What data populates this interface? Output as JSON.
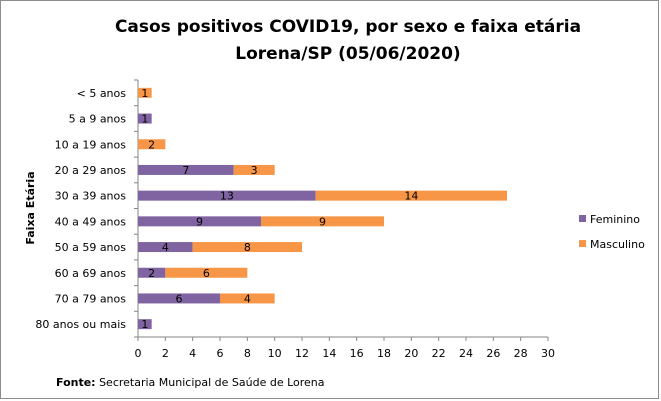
{
  "chart_data": {
    "type": "bar",
    "orientation": "horizontal",
    "stacked": true,
    "title": [
      "Casos positivos  COVID19, por sexo e faixa etária",
      "Lorena/SP (05/06/2020)"
    ],
    "ylabel": "Faixa Etária",
    "xlabel": "",
    "xlim": [
      0,
      30
    ],
    "xticks": [
      0,
      2,
      4,
      6,
      8,
      10,
      12,
      14,
      16,
      18,
      20,
      22,
      24,
      26,
      28,
      30
    ],
    "categories": [
      "< 5 anos",
      "5 a 9 anos",
      "10 a 19 anos",
      "20 a 29 anos",
      "30 a 39 anos",
      "40 a 49 anos",
      "50 a 59 anos",
      "60 a 69 anos",
      "70 a 79 anos",
      "80 anos ou mais"
    ],
    "series": [
      {
        "name": "Feminino",
        "color": "#8064A2",
        "values": [
          0,
          1,
          0,
          7,
          13,
          9,
          4,
          2,
          6,
          1
        ]
      },
      {
        "name": "Masculino",
        "color": "#F79646",
        "values": [
          1,
          0,
          2,
          3,
          14,
          9,
          8,
          6,
          4,
          0
        ]
      }
    ],
    "legend_position": "right",
    "grid": false
  },
  "source": {
    "label": "Fonte:",
    "text": "Secretaria Municipal de Saúde de Lorena"
  }
}
